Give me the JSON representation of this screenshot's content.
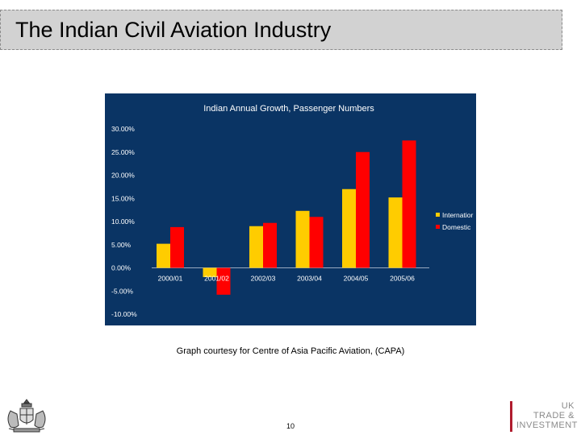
{
  "slide": {
    "title": "The Indian Civil Aviation Industry",
    "caption": "Graph courtesy for Centre of Asia Pacific Aviation, (CAPA)",
    "page_number": "10"
  },
  "logo": {
    "line1": "UK",
    "line2": "TRADE &",
    "line3": "INVESTMENT"
  },
  "colors": {
    "chart_background": "#0a3464",
    "international": "#ffcc00",
    "domestic": "#ff0000",
    "title_bar": "#d2d2d2"
  },
  "chart_data": {
    "type": "bar",
    "title": "Indian Annual Growth, Passenger Numbers",
    "categories": [
      "2000/01",
      "2001/02",
      "2002/03",
      "2003/04",
      "2004/05",
      "2005/06"
    ],
    "series": [
      {
        "name": "Internatior",
        "color": "#ffcc00",
        "values": [
          5.2,
          -2.0,
          9.0,
          12.3,
          17.0,
          15.2
        ]
      },
      {
        "name": "Domestic",
        "color": "#ff0000",
        "values": [
          8.8,
          -5.8,
          9.7,
          11.0,
          25.0,
          27.5
        ]
      }
    ],
    "yticks": [
      "30.00%",
      "25.00%",
      "20.00%",
      "15.00%",
      "10.00%",
      "5.00%",
      "0.00%",
      "-5.00%",
      "-10.00%"
    ],
    "ylim": [
      -10,
      30
    ],
    "ylabel": "",
    "xlabel": "",
    "grid": false,
    "legend_position": "right"
  }
}
